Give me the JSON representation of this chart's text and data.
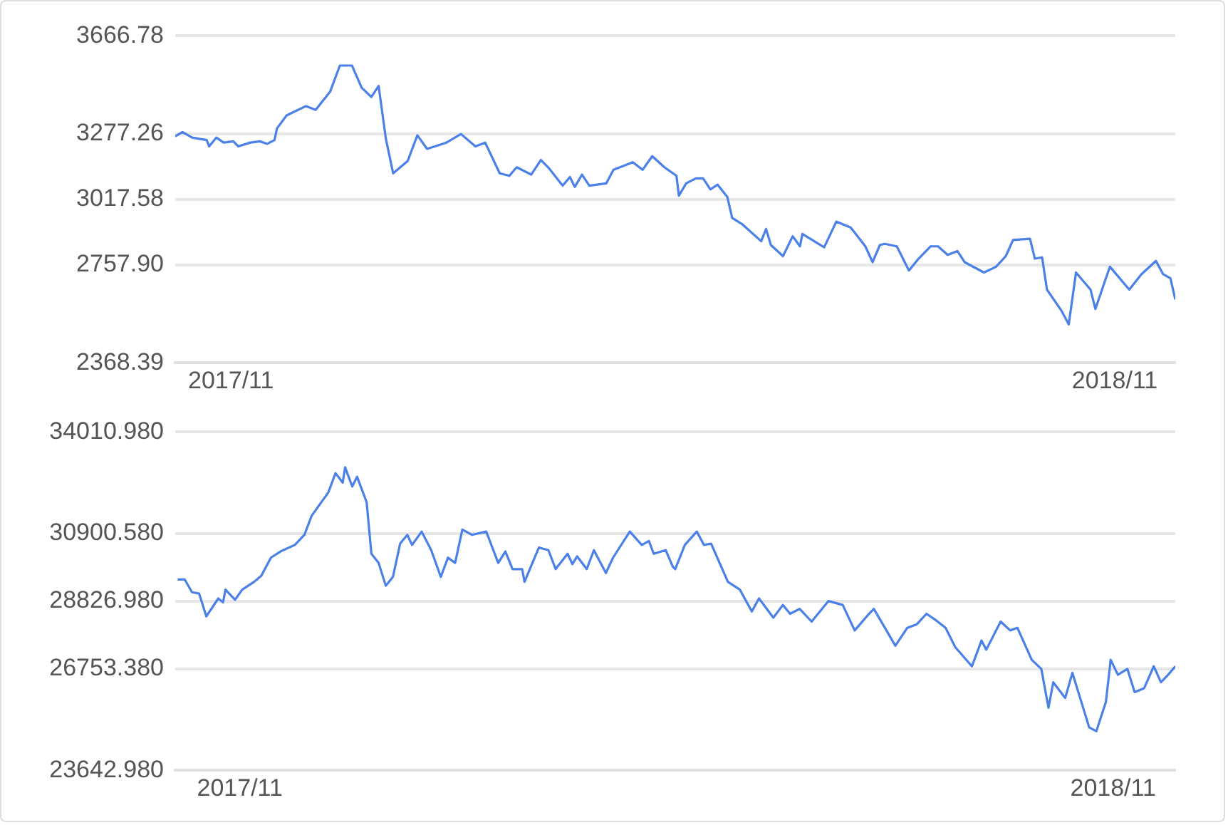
{
  "chart_data": [
    {
      "type": "line",
      "grid": "y",
      "x": [
        "2017-10-09",
        "2017-10-12",
        "2017-10-16",
        "2017-10-22",
        "2017-10-23",
        "2017-10-26",
        "2017-10-29",
        "2017-11-02",
        "2017-11-04",
        "2017-11-09",
        "2017-11-13",
        "2017-11-16",
        "2017-11-19",
        "2017-11-20",
        "2017-11-24",
        "2017-12-02",
        "2017-12-06",
        "2017-12-12",
        "2017-12-16",
        "2017-12-21",
        "2017-12-25",
        "2017-12-29",
        "2018-01-01",
        "2018-01-04",
        "2018-01-07",
        "2018-01-13",
        "2018-01-17",
        "2018-01-21",
        "2018-01-29",
        "2018-02-04",
        "2018-02-10",
        "2018-02-14",
        "2018-02-20",
        "2018-02-24",
        "2018-02-27",
        "2018-03-05",
        "2018-03-09",
        "2018-03-12",
        "2018-03-18",
        "2018-03-21",
        "2018-03-23",
        "2018-03-26",
        "2018-03-29",
        "2018-04-05",
        "2018-04-08",
        "2018-04-16",
        "2018-04-20",
        "2018-04-24",
        "2018-04-29",
        "2018-05-04",
        "2018-05-05",
        "2018-05-08",
        "2018-05-12",
        "2018-05-15",
        "2018-05-18",
        "2018-05-21",
        "2018-05-25",
        "2018-05-27",
        "2018-05-31",
        "2018-06-08",
        "2018-06-10",
        "2018-06-12",
        "2018-06-17",
        "2018-06-21",
        "2018-06-24",
        "2018-06-25",
        "2018-07-04",
        "2018-07-09",
        "2018-07-15",
        "2018-07-21",
        "2018-07-24",
        "2018-07-27",
        "2018-07-29",
        "2018-08-03",
        "2018-08-08",
        "2018-08-12",
        "2018-08-17",
        "2018-08-20",
        "2018-08-24",
        "2018-08-28",
        "2018-08-31",
        "2018-09-08",
        "2018-09-13",
        "2018-09-17",
        "2018-09-20",
        "2018-09-27",
        "2018-09-29",
        "2018-10-02",
        "2018-10-04",
        "2018-10-10",
        "2018-10-13",
        "2018-10-16",
        "2018-10-22",
        "2018-10-24",
        "2018-10-30",
        "2018-11-07",
        "2018-11-12",
        "2018-11-18",
        "2018-11-21",
        "2018-11-24",
        "2018-11-26"
      ],
      "series": [
        {
          "color": "#4a80e8",
          "values": [
            3268,
            3285,
            3263,
            3253,
            3228,
            3263,
            3243,
            3248,
            3228,
            3243,
            3248,
            3238,
            3253,
            3299,
            3351,
            3388,
            3373,
            3446,
            3549,
            3549,
            3461,
            3424,
            3468,
            3258,
            3121,
            3170,
            3272,
            3218,
            3243,
            3277,
            3228,
            3243,
            3121,
            3111,
            3145,
            3116,
            3174,
            3145,
            3072,
            3106,
            3067,
            3116,
            3072,
            3081,
            3135,
            3165,
            3135,
            3189,
            3145,
            3111,
            3032,
            3081,
            3101,
            3101,
            3057,
            3076,
            3027,
            2944,
            2920,
            2851,
            2900,
            2836,
            2792,
            2871,
            2831,
            2880,
            2827,
            2929,
            2905,
            2831,
            2768,
            2836,
            2841,
            2831,
            2735,
            2782,
            2831,
            2831,
            2797,
            2812,
            2768,
            2727,
            2750,
            2792,
            2856,
            2861,
            2782,
            2787,
            2659,
            2575,
            2521,
            2727,
            2659,
            2582,
            2750,
            2659,
            2720,
            2773,
            2720,
            2704,
            2620
          ]
        }
      ],
      "xlim": [
        "2017-10-09",
        "2018-11-26"
      ],
      "xticks": [
        {
          "value": "2017-11-01",
          "label": "2017/11"
        },
        {
          "value": "2018-11-01",
          "label": "2018/11"
        }
      ],
      "ylim": [
        2368.39,
        3666.78
      ],
      "yticks": [
        3666.78,
        3277.26,
        3017.58,
        {
          "value": 2757.9,
          "label": "2757.90"
        },
        2368.39
      ]
    },
    {
      "type": "line",
      "grid": "y",
      "x": [
        "2017-10-06",
        "2017-10-09",
        "2017-10-12",
        "2017-10-15",
        "2017-10-18",
        "2017-10-23",
        "2017-10-25",
        "2017-10-26",
        "2017-10-30",
        "2017-11-02",
        "2017-11-07",
        "2017-11-10",
        "2017-11-14",
        "2017-11-18",
        "2017-11-24",
        "2017-11-28",
        "2017-12-01",
        "2017-12-08",
        "2017-12-11",
        "2017-12-14",
        "2017-12-15",
        "2017-12-18",
        "2017-12-20",
        "2017-12-24",
        "2017-12-26",
        "2017-12-29",
        "2018-01-01",
        "2018-01-04",
        "2018-01-07",
        "2018-01-10",
        "2018-01-12",
        "2018-01-16",
        "2018-01-20",
        "2018-01-24",
        "2018-01-27",
        "2018-01-30",
        "2018-02-02",
        "2018-02-06",
        "2018-02-12",
        "2018-02-17",
        "2018-02-20",
        "2018-02-23",
        "2018-02-27",
        "2018-02-28",
        "2018-03-06",
        "2018-03-10",
        "2018-03-13",
        "2018-03-18",
        "2018-03-20",
        "2018-03-22",
        "2018-03-26",
        "2018-03-29",
        "2018-04-03",
        "2018-04-06",
        "2018-04-13",
        "2018-04-18",
        "2018-04-21",
        "2018-04-23",
        "2018-04-28",
        "2018-05-01",
        "2018-05-02",
        "2018-05-06",
        "2018-05-11",
        "2018-05-14",
        "2018-05-17",
        "2018-05-24",
        "2018-05-29",
        "2018-06-03",
        "2018-06-06",
        "2018-06-12",
        "2018-06-16",
        "2018-06-19",
        "2018-06-23",
        "2018-06-28",
        "2018-07-05",
        "2018-07-11",
        "2018-07-16",
        "2018-07-22",
        "2018-07-24",
        "2018-08-02",
        "2018-08-07",
        "2018-08-11",
        "2018-08-15",
        "2018-08-19",
        "2018-08-23",
        "2018-08-27",
        "2018-09-03",
        "2018-09-07",
        "2018-09-09",
        "2018-09-15",
        "2018-09-19",
        "2018-09-22",
        "2018-09-28",
        "2018-10-02",
        "2018-10-05",
        "2018-10-07",
        "2018-10-12",
        "2018-10-15",
        "2018-10-22",
        "2018-10-25",
        "2018-10-29",
        "2018-10-31",
        "2018-11-03",
        "2018-11-07",
        "2018-11-10",
        "2018-11-14",
        "2018-11-18",
        "2018-11-21",
        "2018-11-24",
        "2018-11-27"
      ],
      "series": [
        {
          "color": "#4a80e8",
          "values": [
            29490,
            29490,
            29100,
            29060,
            28360,
            28910,
            28790,
            29180,
            28870,
            29180,
            29420,
            29610,
            30160,
            30350,
            30550,
            30860,
            31440,
            32160,
            32750,
            32460,
            32930,
            32340,
            32640,
            31860,
            30280,
            30000,
            29300,
            29570,
            30590,
            30860,
            30550,
            30960,
            30390,
            29570,
            30160,
            30000,
            31020,
            30860,
            30960,
            30000,
            30350,
            29810,
            29810,
            29420,
            30470,
            30390,
            29810,
            30280,
            29960,
            30200,
            29810,
            30390,
            29690,
            30160,
            30960,
            30550,
            30670,
            30280,
            30390,
            29880,
            29810,
            30550,
            30960,
            30550,
            30590,
            29420,
            29180,
            28510,
            28910,
            28320,
            28710,
            28440,
            28590,
            28200,
            28830,
            28710,
            27930,
            28440,
            28590,
            27460,
            28010,
            28120,
            28440,
            28240,
            28010,
            27420,
            26830,
            27620,
            27340,
            28200,
            27930,
            28010,
            27030,
            26750,
            25560,
            26340,
            25860,
            26630,
            24960,
            24840,
            25740,
            27030,
            26570,
            26750,
            26040,
            26160,
            26830,
            26340,
            26570,
            26830
          ]
        }
      ],
      "xlim": [
        "2017-10-05",
        "2018-11-27"
      ],
      "xticks": [
        {
          "value": "2017-11-01",
          "label": "2017/11"
        },
        {
          "value": "2018-11-01",
          "label": "2018/11"
        }
      ],
      "ylim": [
        23642.98,
        34010.98
      ],
      "yticks": [
        {
          "value": 34010.98,
          "label": "34010.980"
        },
        {
          "value": 30900.58,
          "label": "30900.580"
        },
        {
          "value": 28826.98,
          "label": "28826.980"
        },
        {
          "value": 26753.38,
          "label": "26753.380"
        },
        {
          "value": 23642.98,
          "label": "23642.980"
        }
      ]
    }
  ]
}
